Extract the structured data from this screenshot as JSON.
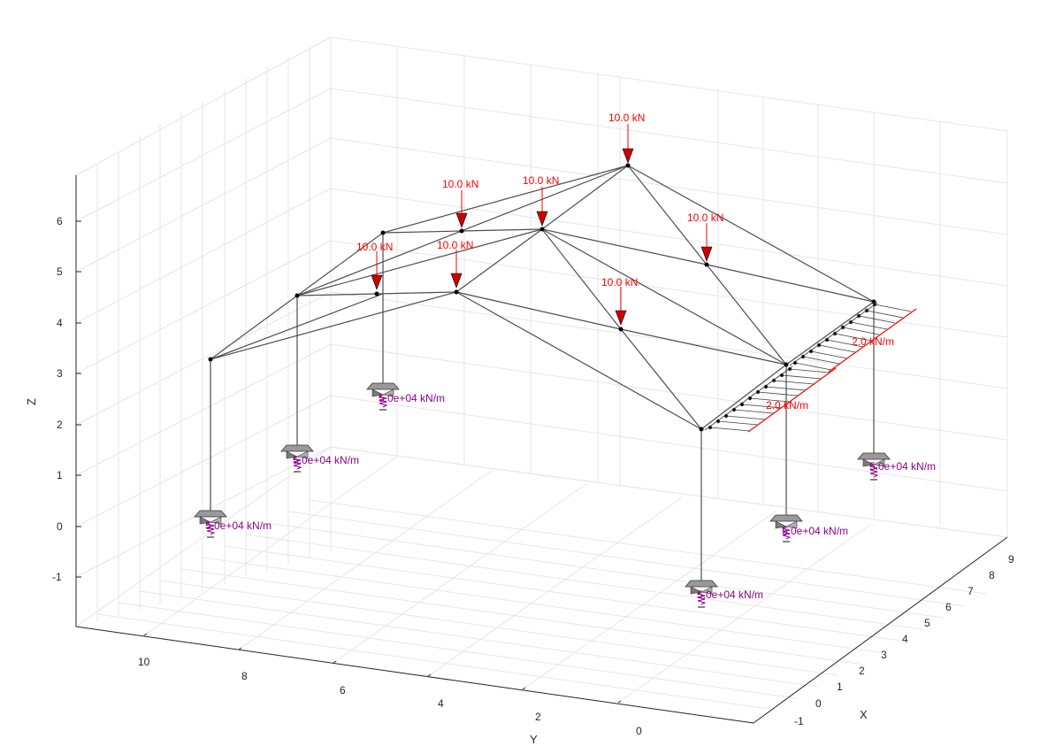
{
  "axes": {
    "x_label": "X",
    "y_label": "Y",
    "z_label": "Z",
    "x_ticks": [
      "-1",
      "0",
      "1",
      "2",
      "3",
      "4",
      "5",
      "6",
      "7",
      "8",
      "9"
    ],
    "y_ticks": [
      "0",
      "2",
      "4",
      "6",
      "8",
      "10"
    ],
    "z_ticks": [
      "-1",
      "0",
      "1",
      "2",
      "3",
      "4",
      "5",
      "6"
    ]
  },
  "colors": {
    "member": "#4d4d4d",
    "grid": "#e6e6e6",
    "load": "#ff0000",
    "spring": "#8b008b",
    "support": "#a0a0a0"
  },
  "point_loads": [
    {
      "label": "10.0 kN"
    },
    {
      "label": "10.0 kN"
    },
    {
      "label": "10.0 kN"
    },
    {
      "label": "10.0 kN"
    },
    {
      "label": "10.0 kN"
    },
    {
      "label": "10.0 kN"
    },
    {
      "label": "10.0 kN"
    }
  ],
  "distributed_loads": [
    {
      "label": "2.0 kN/m"
    },
    {
      "label": "2.0 kN/m"
    }
  ],
  "supports": [
    {
      "label": "5.0e+04 kN/m"
    },
    {
      "label": "5.0e+04 kN/m"
    },
    {
      "label": "5.0e+04 kN/m"
    },
    {
      "label": "5.0e+04 kN/m"
    },
    {
      "label": "5.0e+04 kN/m"
    },
    {
      "label": "5.0e+04 kN/m"
    }
  ]
}
